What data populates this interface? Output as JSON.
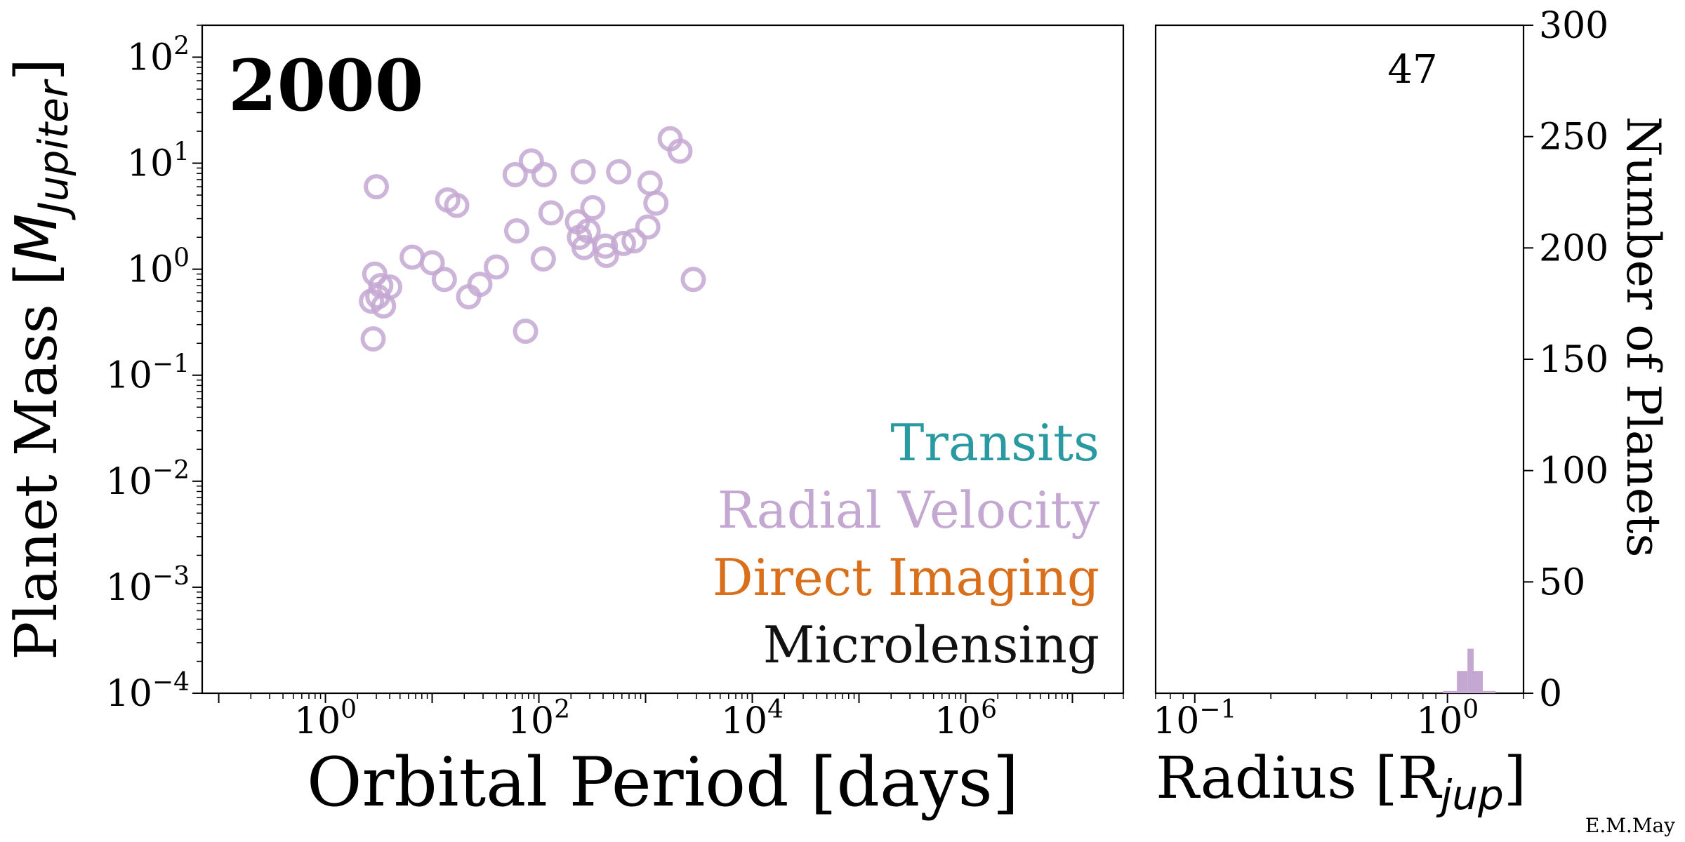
{
  "chart_data": [
    {
      "type": "scatter",
      "panel": "main",
      "year_label": "2000",
      "xlabel": "Orbital Period [days]",
      "ylabel": "Planet Mass [M_Jupiter]",
      "xscale": "log",
      "yscale": "log",
      "xlim": [
        0.07,
        30000000
      ],
      "ylim": [
        0.0001,
        200
      ],
      "x_ticks": [
        1,
        100,
        10000,
        1000000
      ],
      "y_ticks": [
        0.0001,
        0.001,
        0.01,
        0.1,
        1,
        10,
        100
      ],
      "grid": false,
      "legend_position": "bottom-right",
      "legend": [
        {
          "name": "Transits",
          "color": "#2a9aa2"
        },
        {
          "name": "Radial Velocity",
          "color": "#c4a8d2"
        },
        {
          "name": "Direct Imaging",
          "color": "#d96f1a"
        },
        {
          "name": "Microlensing",
          "color": "#111111"
        }
      ],
      "series": [
        {
          "name": "Radial Velocity",
          "color": "#c4a8d2",
          "marker": "open-circle",
          "points": [
            [
              3.0,
              6.0
            ],
            [
              2.8,
              0.22
            ],
            [
              2.9,
              0.9
            ],
            [
              3.1,
              0.55
            ],
            [
              2.7,
              0.5
            ],
            [
              3.3,
              0.7
            ],
            [
              3.5,
              0.45
            ],
            [
              4.0,
              0.68
            ],
            [
              6.5,
              1.3
            ],
            [
              10.0,
              1.15
            ],
            [
              13.0,
              0.8
            ],
            [
              14.0,
              4.5
            ],
            [
              17.0,
              4.0
            ],
            [
              22.0,
              0.55
            ],
            [
              28.0,
              0.72
            ],
            [
              40.0,
              1.05
            ],
            [
              60.0,
              7.8
            ],
            [
              62.0,
              2.3
            ],
            [
              75.0,
              0.26
            ],
            [
              85.0,
              10.5
            ],
            [
              110.0,
              1.25
            ],
            [
              112.0,
              7.8
            ],
            [
              130.0,
              3.4
            ],
            [
              230.0,
              2.8
            ],
            [
              240.0,
              2.0
            ],
            [
              260.0,
              8.3
            ],
            [
              265.0,
              1.6
            ],
            [
              290.0,
              2.3
            ],
            [
              320.0,
              3.8
            ],
            [
              420.0,
              1.65
            ],
            [
              430.0,
              1.35
            ],
            [
              560.0,
              8.3
            ],
            [
              620.0,
              1.75
            ],
            [
              780.0,
              1.85
            ],
            [
              1050.0,
              2.5
            ],
            [
              1100.0,
              6.5
            ],
            [
              1250.0,
              4.2
            ],
            [
              1700.0,
              17.0
            ],
            [
              2100.0,
              13.0
            ],
            [
              2800.0,
              0.8
            ]
          ]
        }
      ]
    },
    {
      "type": "bar",
      "panel": "histogram",
      "count_label": "47",
      "xlabel": "Radius [R_jup]",
      "ylabel": "Number of Planets",
      "xscale": "log",
      "xlim": [
        0.07,
        2.0
      ],
      "ylim": [
        0,
        300
      ],
      "x_ticks": [
        0.1,
        1
      ],
      "y_ticks": [
        0,
        50,
        100,
        150,
        200,
        250,
        300
      ],
      "yaxis_position": "right",
      "color": "#c4a8d2",
      "bins": [
        {
          "x0": 0.96,
          "x1": 1.09,
          "value": 1
        },
        {
          "x0": 1.09,
          "x1": 1.2,
          "value": 10
        },
        {
          "x0": 1.2,
          "x1": 1.27,
          "value": 20
        },
        {
          "x0": 1.27,
          "x1": 1.38,
          "value": 10
        },
        {
          "x0": 1.38,
          "x1": 1.55,
          "value": 1
        }
      ]
    }
  ],
  "credit": "E.M.May"
}
